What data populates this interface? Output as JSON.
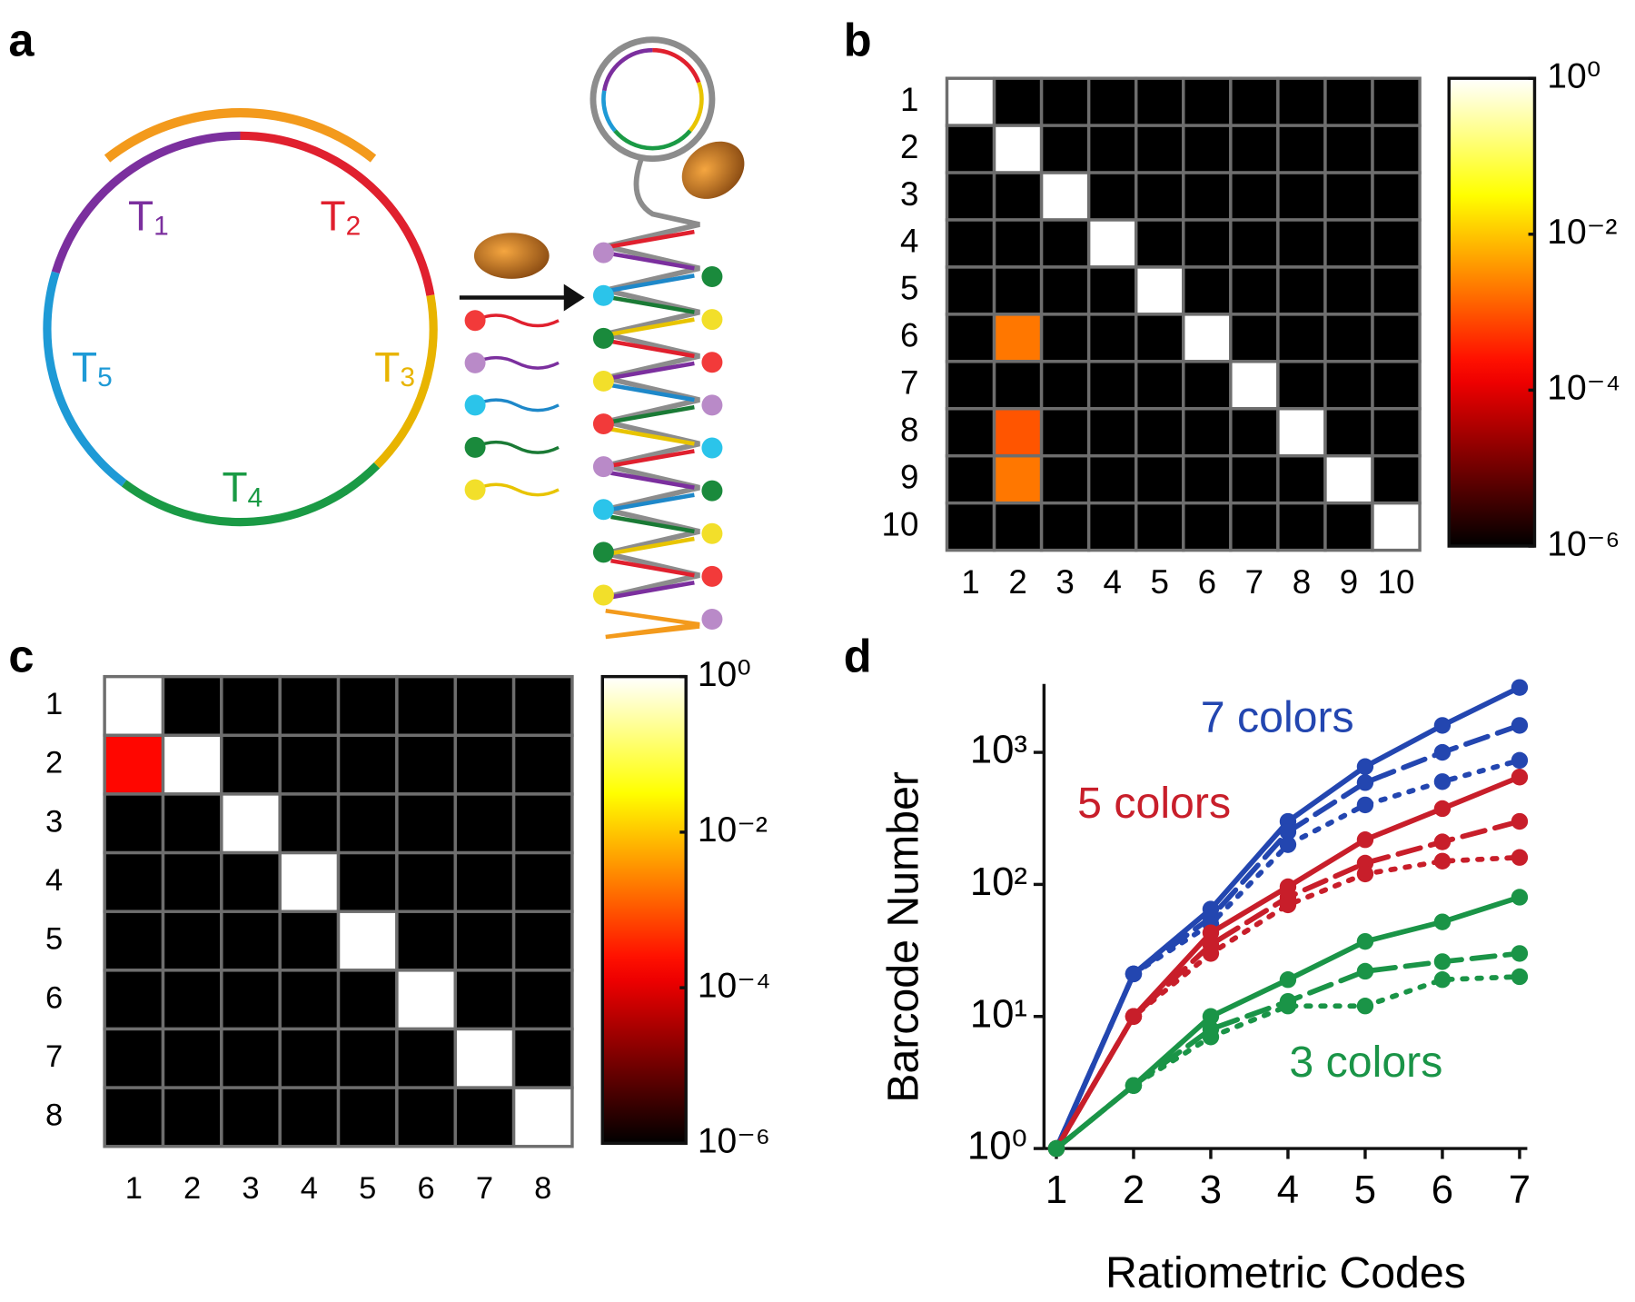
{
  "diagram": {
    "panel_label": "a",
    "segments": [
      {
        "name": "T",
        "index": "1",
        "color": "#7b2f9e"
      },
      {
        "name": "T",
        "index": "2",
        "color": "#e0202e"
      },
      {
        "name": "T",
        "index": "3",
        "color": "#e8b400"
      },
      {
        "name": "T",
        "index": "4",
        "color": "#1a9a45"
      },
      {
        "name": "T",
        "index": "5",
        "color": "#1e9ad6"
      }
    ]
  },
  "chart_data": [
    {
      "type": "heatmap",
      "panel_label": "b",
      "colormap": "hot",
      "log_scale": true,
      "x_categories": [
        "1",
        "2",
        "3",
        "4",
        "5",
        "6",
        "7",
        "8",
        "9",
        "10"
      ],
      "y_categories": [
        "1",
        "2",
        "3",
        "4",
        "5",
        "6",
        "7",
        "8",
        "9",
        "10"
      ],
      "values": [
        [
          1,
          1e-06,
          1e-06,
          1e-06,
          1e-06,
          1e-06,
          1e-06,
          1e-06,
          1e-06,
          1e-06
        ],
        [
          1e-06,
          1,
          1e-06,
          1e-06,
          1e-06,
          1e-06,
          1e-06,
          1e-06,
          1e-06,
          1e-06
        ],
        [
          1e-06,
          1e-06,
          1,
          1e-06,
          1e-06,
          1e-06,
          1e-06,
          1e-06,
          1e-06,
          1e-06
        ],
        [
          1e-06,
          1e-06,
          1e-06,
          1,
          1e-06,
          1e-06,
          1e-06,
          1e-06,
          1e-06,
          1e-06
        ],
        [
          1e-06,
          1e-06,
          1e-06,
          1e-06,
          1,
          1e-06,
          1e-06,
          1e-06,
          1e-06,
          1e-06
        ],
        [
          1e-06,
          0.002,
          1e-06,
          1e-06,
          1e-06,
          1,
          1e-06,
          1e-06,
          1e-06,
          1e-06
        ],
        [
          1e-06,
          1e-06,
          1e-06,
          1e-06,
          1e-06,
          1e-06,
          1,
          1e-06,
          1e-06,
          1e-06
        ],
        [
          1e-06,
          0.001,
          1e-06,
          1e-06,
          1e-06,
          1e-06,
          1e-06,
          1,
          1e-06,
          1e-06
        ],
        [
          1e-06,
          0.002,
          1e-06,
          1e-06,
          1e-06,
          1e-06,
          1e-06,
          1e-06,
          1,
          1e-06
        ],
        [
          1e-06,
          1e-06,
          1e-06,
          1e-06,
          1e-06,
          1e-06,
          1e-06,
          1e-06,
          1e-06,
          1
        ]
      ],
      "zlim": [
        1e-06,
        1
      ],
      "zticks": [
        {
          "value": 1,
          "label": "10⁰"
        },
        {
          "value": 0.01,
          "label": "10⁻²"
        },
        {
          "value": 0.0001,
          "label": "10⁻⁴"
        },
        {
          "value": 1e-06,
          "label": "10⁻⁶"
        }
      ]
    },
    {
      "type": "heatmap",
      "panel_label": "c",
      "colormap": "hot",
      "log_scale": true,
      "x_categories": [
        "1",
        "2",
        "3",
        "4",
        "5",
        "6",
        "7",
        "8"
      ],
      "y_categories": [
        "1",
        "2",
        "3",
        "4",
        "5",
        "6",
        "7",
        "8"
      ],
      "values": [
        [
          1,
          1e-06,
          1e-06,
          1e-06,
          1e-06,
          1e-06,
          1e-06,
          1e-06
        ],
        [
          0.0002,
          1,
          1e-06,
          1e-06,
          1e-06,
          1e-06,
          1e-06,
          1e-06
        ],
        [
          1e-06,
          1e-06,
          1,
          1e-06,
          1e-06,
          1e-06,
          1e-06,
          1e-06
        ],
        [
          1e-06,
          1e-06,
          1e-06,
          1,
          1e-06,
          1e-06,
          1e-06,
          1e-06
        ],
        [
          1e-06,
          1e-06,
          1e-06,
          1e-06,
          1,
          1e-06,
          1e-06,
          1e-06
        ],
        [
          1e-06,
          1e-06,
          1e-06,
          1e-06,
          1e-06,
          1,
          1e-06,
          1e-06
        ],
        [
          1e-06,
          1e-06,
          1e-06,
          1e-06,
          1e-06,
          1e-06,
          1,
          1e-06
        ],
        [
          1e-06,
          1e-06,
          1e-06,
          1e-06,
          1e-06,
          1e-06,
          1e-06,
          1
        ]
      ],
      "zlim": [
        1e-06,
        1
      ],
      "zticks": [
        {
          "value": 1,
          "label": "10⁰"
        },
        {
          "value": 0.01,
          "label": "10⁻²"
        },
        {
          "value": 0.0001,
          "label": "10⁻⁴"
        },
        {
          "value": 1e-06,
          "label": "10⁻⁶"
        }
      ]
    },
    {
      "type": "line",
      "panel_label": "d",
      "log_scale": true,
      "xlabel": "Ratiometric Codes",
      "ylabel": "Barcode Number",
      "x": [
        1,
        2,
        3,
        4,
        5,
        6,
        7
      ],
      "xlim": [
        0.84,
        7.1
      ],
      "xticks": [
        1,
        2,
        3,
        4,
        5,
        6,
        7
      ],
      "ylim": [
        1,
        3300
      ],
      "yticks": [
        {
          "value": 1,
          "label": "10⁰"
        },
        {
          "value": 10,
          "label": "10¹"
        },
        {
          "value": 100,
          "label": "10²"
        },
        {
          "value": 1000,
          "label": "10³"
        }
      ],
      "series": [
        {
          "color": "#2346b0",
          "dash": "solid",
          "values": [
            1,
            21,
            65,
            300,
            780,
            1600,
            3100
          ]
        },
        {
          "color": "#2346b0",
          "dash": "dashed",
          "values": [
            1,
            21,
            56,
            250,
            590,
            1000,
            1600
          ]
        },
        {
          "color": "#2346b0",
          "dash": "dotted",
          "values": [
            1,
            21,
            50,
            200,
            400,
            600,
            870
          ]
        },
        {
          "color": "#c81e2a",
          "dash": "solid",
          "values": [
            1,
            10,
            43,
            96,
            218,
            375,
            650
          ]
        },
        {
          "color": "#c81e2a",
          "dash": "dashed",
          "values": [
            1,
            10,
            35,
            80,
            145,
            210,
            300
          ]
        },
        {
          "color": "#c81e2a",
          "dash": "dotted",
          "values": [
            1,
            10,
            30,
            70,
            120,
            150,
            160
          ]
        },
        {
          "color": "#1a9447",
          "dash": "solid",
          "values": [
            1,
            3,
            10,
            19,
            37,
            52,
            80
          ]
        },
        {
          "color": "#1a9447",
          "dash": "dashed",
          "values": [
            1,
            3,
            8,
            13,
            22,
            26,
            30
          ]
        },
        {
          "color": "#1a9447",
          "dash": "dotted",
          "values": [
            1,
            3,
            7,
            12,
            12,
            19,
            20
          ]
        }
      ],
      "annotations": [
        {
          "text": "7 colors",
          "color": "#2346b0"
        },
        {
          "text": "5 colors",
          "color": "#c81e2a"
        },
        {
          "text": "3 colors",
          "color": "#1a9447"
        }
      ]
    }
  ]
}
